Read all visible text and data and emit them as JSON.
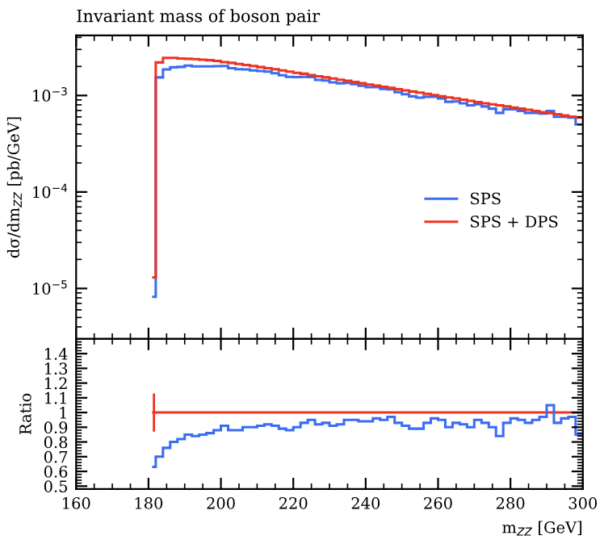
{
  "chart_data": [
    {
      "type": "histogram",
      "title": "Invariant mass of boson pair",
      "ylabel": "dσ/dm$_{ZZ}$ [pb/GeV]",
      "bins": [
        181,
        182,
        184,
        186,
        188,
        190,
        192,
        194,
        196,
        198,
        200,
        202,
        204,
        206,
        208,
        210,
        212,
        214,
        216,
        218,
        220,
        222,
        224,
        226,
        228,
        230,
        232,
        234,
        236,
        238,
        240,
        242,
        244,
        246,
        248,
        250,
        252,
        254,
        256,
        258,
        260,
        262,
        264,
        266,
        268,
        270,
        272,
        274,
        276,
        278,
        280,
        282,
        284,
        286,
        288,
        290,
        292,
        294,
        296,
        298,
        300
      ],
      "series": [
        {
          "name": "SPS",
          "color": "#3a6df0",
          "values": [
            8.2e-06,
            0.00154,
            0.00186,
            0.00196,
            0.00198,
            0.00204,
            0.002,
            0.002,
            0.002,
            0.00201,
            0.00202,
            0.00192,
            0.00187,
            0.00186,
            0.00182,
            0.00179,
            0.00177,
            0.0017,
            0.00162,
            0.00156,
            0.00155,
            0.00156,
            0.00155,
            0.00145,
            0.00143,
            0.00137,
            0.00134,
            0.00135,
            0.00131,
            0.00126,
            0.00122,
            0.00122,
            0.00117,
            0.00116,
            0.00108,
            0.00103,
            0.00098,
            0.00095,
            0.00097,
            0.00097,
            0.00093,
            0.00086,
            0.000865,
            0.00083,
            0.00079,
            0.00081,
            0.00077,
            0.00073,
            0.00066,
            0.00072,
            0.00072,
            0.00069,
            0.00066,
            0.00066,
            0.00065,
            0.00069,
            0.0006,
            0.0006,
            0.00059,
            0.0005
          ]
        },
        {
          "name": "SPS + DPS",
          "color": "#ee3322",
          "values": [
            1.3e-05,
            0.0022,
            0.00245,
            0.00245,
            0.00242,
            0.0024,
            0.00238,
            0.00235,
            0.00232,
            0.00228,
            0.00222,
            0.00218,
            0.00212,
            0.00207,
            0.00202,
            0.00197,
            0.00192,
            0.00187,
            0.00182,
            0.00177,
            0.00172,
            0.00168,
            0.00163,
            0.00158,
            0.00154,
            0.0015,
            0.00146,
            0.00142,
            0.00138,
            0.00134,
            0.0013,
            0.00127,
            0.00123,
            0.0012,
            0.00116,
            0.00113,
            0.0011,
            0.00107,
            0.00104,
            0.00101,
            0.00098,
            0.000955,
            0.00093,
            0.000905,
            0.00088,
            0.000855,
            0.00083,
            0.00081,
            0.00079,
            0.00077,
            0.00075,
            0.00073,
            0.00071,
            0.00069,
            0.00067,
            0.000655,
            0.00064,
            0.00062,
            0.000605,
            0.00059
          ]
        }
      ],
      "xlim": [
        160,
        300
      ],
      "log": "y",
      "ylim": [
        3e-06,
        0.0042
      ],
      "yticks": [
        {
          "value": 1e-05,
          "label": "10$^{−5}$"
        },
        {
          "value": 0.0001,
          "label": "10$^{−4}$"
        },
        {
          "value": 0.001,
          "label": "10$^{−3}$"
        }
      ],
      "tick_labels": "y",
      "legend": "right",
      "grid": false
    },
    {
      "type": "histogram",
      "ylabel": "Ratio",
      "xlabel": "m$_{ZZ}$ [GeV]",
      "bins": [
        181,
        182,
        184,
        186,
        188,
        190,
        192,
        194,
        196,
        198,
        200,
        202,
        204,
        206,
        208,
        210,
        212,
        214,
        216,
        218,
        220,
        222,
        224,
        226,
        228,
        230,
        232,
        234,
        236,
        238,
        240,
        242,
        244,
        246,
        248,
        250,
        252,
        254,
        256,
        258,
        260,
        262,
        264,
        266,
        268,
        270,
        272,
        274,
        276,
        278,
        280,
        282,
        284,
        286,
        288,
        290,
        292,
        294,
        296,
        298,
        300
      ],
      "series": [
        {
          "color": "#ee3322",
          "values": [
            1,
            1,
            1,
            1,
            1,
            1,
            1,
            1,
            1,
            1,
            1,
            1,
            1,
            1,
            1,
            1,
            1,
            1,
            1,
            1,
            1,
            1,
            1,
            1,
            1,
            1,
            1,
            1,
            1,
            1,
            1,
            1,
            1,
            1,
            1,
            1,
            1,
            1,
            1,
            1,
            1,
            1,
            1,
            1,
            1,
            1,
            1,
            1,
            1,
            1,
            1,
            1,
            1,
            1,
            1,
            1,
            1,
            1,
            1,
            1
          ],
          "errors": [
            0.13,
            null,
            null,
            null,
            null,
            null,
            null,
            null,
            null,
            null,
            null,
            null,
            null,
            null,
            null,
            null,
            null,
            null,
            null,
            null,
            null,
            null,
            null,
            null,
            null,
            null,
            null,
            null,
            null,
            null,
            null,
            null,
            null,
            null,
            null,
            null,
            null,
            null,
            null,
            null,
            null,
            null,
            null,
            null,
            null,
            null,
            null,
            null,
            null,
            null,
            null,
            null,
            null,
            null,
            null,
            null,
            null,
            null,
            null,
            null
          ]
        },
        {
          "color": "#3a6df0",
          "values": [
            0.63,
            0.7,
            0.76,
            0.8,
            0.82,
            0.85,
            0.84,
            0.85,
            0.86,
            0.88,
            0.91,
            0.88,
            0.88,
            0.9,
            0.9,
            0.91,
            0.92,
            0.91,
            0.89,
            0.88,
            0.9,
            0.93,
            0.95,
            0.92,
            0.93,
            0.91,
            0.92,
            0.95,
            0.95,
            0.94,
            0.94,
            0.96,
            0.95,
            0.97,
            0.93,
            0.91,
            0.89,
            0.89,
            0.93,
            0.96,
            0.95,
            0.9,
            0.93,
            0.92,
            0.9,
            0.95,
            0.93,
            0.9,
            0.84,
            0.93,
            0.96,
            0.95,
            0.93,
            0.95,
            0.97,
            1.05,
            0.93,
            0.96,
            0.97,
            0.85
          ]
        }
      ],
      "xlim": [
        160,
        300
      ],
      "xticks": [
        160,
        180,
        200,
        220,
        240,
        260,
        280,
        300
      ],
      "ylim": [
        0.48,
        1.5
      ],
      "yticks": [
        0.5,
        0.6,
        0.7,
        0.8,
        0.9,
        1,
        1.1,
        1.2,
        1.3,
        1.4
      ],
      "grid": false
    }
  ]
}
